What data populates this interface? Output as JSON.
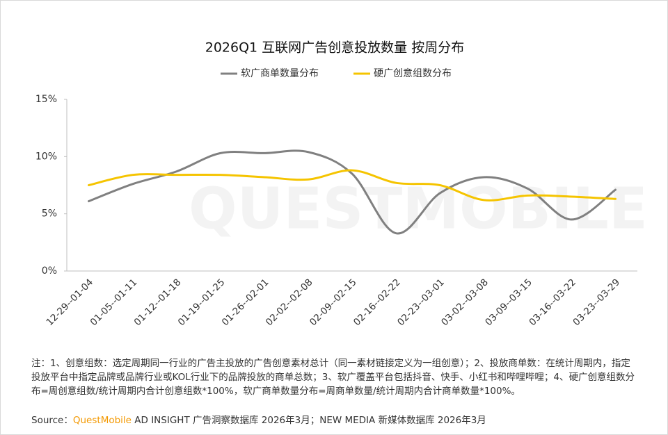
{
  "chart_data": {
    "type": "line",
    "title": "2026Q1 互联网广告创意投放数量 按周分布",
    "watermark": "QUESTMOBILE",
    "categories": [
      "12-29--01-04",
      "01-05--01-11",
      "01-12--01-18",
      "01-19--01-25",
      "01-26--02-01",
      "02-02--02-08",
      "02-09--02-15",
      "02-16--02-22",
      "02-23--03-01",
      "03-02--03-08",
      "03-09--03-15",
      "03-16--03-22",
      "03-23--03-29"
    ],
    "series": [
      {
        "name": "软广商单数量分布",
        "color": "#808080",
        "values": [
          6.1,
          7.6,
          8.7,
          10.3,
          10.3,
          10.4,
          8.5,
          3.3,
          6.8,
          8.2,
          7.2,
          4.5,
          7.1
        ]
      },
      {
        "name": "硬广创意组数分布",
        "color": "#f5c400",
        "values": [
          7.5,
          8.4,
          8.4,
          8.4,
          8.2,
          8.0,
          8.8,
          7.7,
          7.5,
          6.2,
          6.6,
          6.5,
          6.3
        ]
      }
    ],
    "ylim": [
      0,
      15
    ],
    "yticks": [
      {
        "value": 0,
        "label": "0%"
      },
      {
        "value": 5,
        "label": "5%"
      },
      {
        "value": 10,
        "label": "10%"
      },
      {
        "value": 15,
        "label": "15%"
      }
    ],
    "legend": "top",
    "smooth": true
  },
  "note": "注：1、创意组数：选定周期同一行业的广告主投放的广告创意素材总计（同一素材链接定义为一组创意）；2、投放商单数：在统计周期内，指定投放平台中指定品牌或品牌行业或KOL行业下的品牌投放的商单总数；3、软广覆盖平台包括抖音、快手、小红书和哔哩哔哩；4、硬广创意组数分布=周创意组数/统计周期内合计创意组数*100%，软广商单数量分布=周商单数量/统计周期内合计商单数量*100%。",
  "source": {
    "label": "Source：",
    "brand": "QuestMobile",
    "text": " AD INSIGHT 广告洞察数据库 2026年3月；NEW MEDIA 新媒体数据库 2026年3月"
  }
}
